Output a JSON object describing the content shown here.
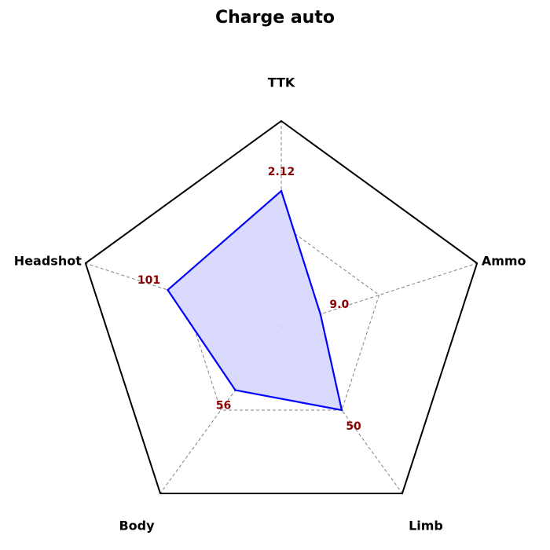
{
  "chart_data": {
    "type": "radar",
    "title": "Charge auto",
    "axes": [
      "TTK",
      "Ammo",
      "Limb",
      "Body",
      "Headshot"
    ],
    "value_labels": [
      "2.12",
      "9.0",
      "50",
      "56",
      "101"
    ],
    "series": [
      {
        "values": [
          0.66,
          0.2,
          0.5,
          0.38,
          0.58
        ]
      }
    ],
    "rlim": [
      0,
      1
    ],
    "grid_levels": [
      0.5
    ],
    "colors": {
      "line": "#0000ff",
      "fill": "#d8d8ff",
      "outer": "#000000",
      "grid": "#808080",
      "value_label": "#8b0000"
    }
  }
}
